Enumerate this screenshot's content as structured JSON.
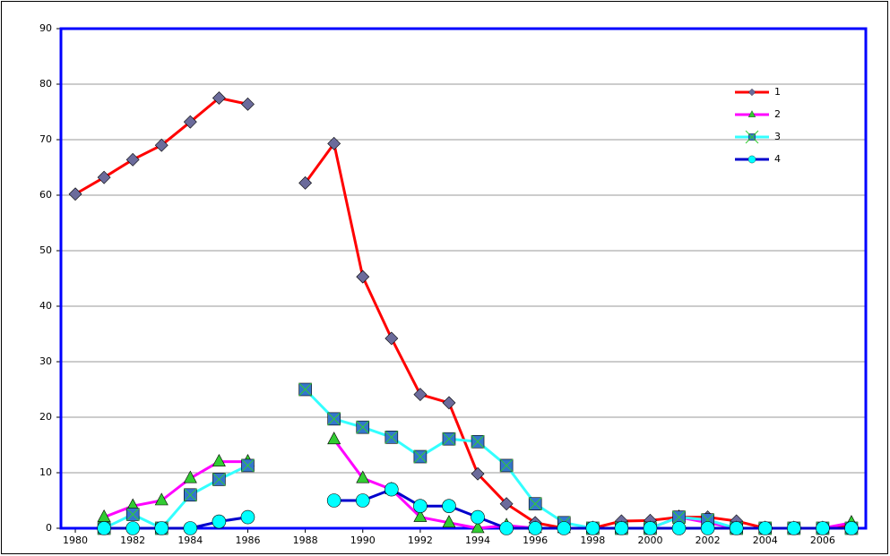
{
  "chart_data": {
    "type": "line",
    "x": [
      1980,
      1981,
      1982,
      1983,
      1984,
      1985,
      1986,
      1987,
      1988,
      1989,
      1990,
      1991,
      1992,
      1993,
      1994,
      1995,
      1996,
      1997,
      1998,
      1999,
      2000,
      2001,
      2002,
      2003,
      2004,
      2005,
      2006,
      2007
    ],
    "xlim": [
      1979.5,
      2007.5
    ],
    "xticks": [
      1980,
      1982,
      1984,
      1986,
      1988,
      1990,
      1992,
      1994,
      1996,
      1998,
      2000,
      2002,
      2004,
      2006
    ],
    "ylim": [
      0,
      90
    ],
    "yticks": [
      0,
      10,
      20,
      30,
      40,
      50,
      60,
      70,
      80,
      90
    ],
    "grid": true,
    "series": [
      {
        "name": "1",
        "color": "#ff0000",
        "marker": "diamond",
        "marker_color": "#6b6b9b",
        "values": [
          60.2,
          63.2,
          66.4,
          69,
          73.2,
          77.5,
          76.4,
          null,
          62.2,
          69.3,
          45.3,
          34.2,
          24.1,
          22.6,
          9.8,
          4.4,
          1,
          0,
          0,
          1.3,
          1.4,
          2,
          2,
          1.3,
          0,
          0,
          0,
          0.5
        ]
      },
      {
        "name": "2",
        "color": "#ff00ff",
        "marker": "triangle",
        "marker_color": "#33cc33",
        "values": [
          null,
          2,
          4,
          5,
          9,
          12,
          12,
          null,
          null,
          16,
          9,
          7,
          2,
          1,
          0,
          0.5,
          0,
          0,
          0,
          0,
          0,
          2,
          1,
          0,
          0,
          0,
          0,
          1
        ]
      },
      {
        "name": "3",
        "color": "#33ffff",
        "marker": "square",
        "marker_color": "#3377cc",
        "values": [
          null,
          0,
          2.5,
          0,
          6,
          8.8,
          11.3,
          null,
          25,
          19.7,
          18.2,
          16.4,
          12.9,
          16.1,
          15.6,
          11.3,
          4.4,
          1,
          0,
          0,
          0,
          2,
          1.5,
          0,
          0,
          0,
          0,
          0
        ]
      },
      {
        "name": "4",
        "color": "#0000cc",
        "marker": "circle",
        "marker_color": "#00ffff",
        "values": [
          null,
          0,
          0,
          0,
          0,
          1.2,
          2,
          null,
          null,
          5,
          5,
          7,
          4,
          4,
          2,
          0,
          0,
          0,
          0,
          0,
          0,
          0,
          0,
          0,
          0,
          0,
          0,
          0
        ]
      }
    ]
  }
}
